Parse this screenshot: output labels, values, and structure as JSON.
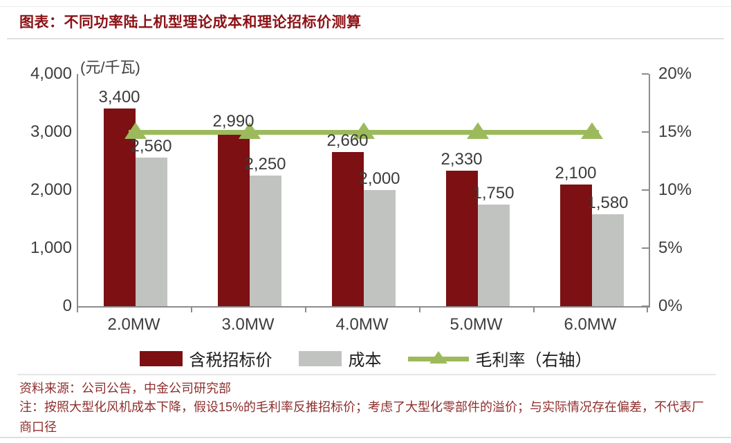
{
  "page": {
    "title": "图表：不同功率陆上机型理论成本和理论招标价测算",
    "source": "资料来源：公司公告，中金公司研究部",
    "note": "注：按照大型化风机成本下降，假设15%的毛利率反推招标价；考虑了大型化零部件的溢价；与实际情况存在偏差，不代表厂商口径"
  },
  "chart_data": {
    "type": "bar",
    "title": "不同功率陆上机型理论成本和理论招标价测算",
    "unit_label": "(元/千瓦)",
    "categories": [
      "2.0MW",
      "3.0MW",
      "4.0MW",
      "5.0MW",
      "6.0MW"
    ],
    "series": [
      {
        "name": "含税招标价",
        "type": "bar",
        "axis": "left",
        "color": "#7d1012",
        "values": [
          3400,
          2990,
          2660,
          2330,
          2100
        ],
        "labels": [
          "3,400",
          "2,990",
          "2,660",
          "2,330",
          "2,100"
        ]
      },
      {
        "name": "成本",
        "type": "bar",
        "axis": "left",
        "color": "#c1c3c1",
        "values": [
          2560,
          2250,
          2000,
          1750,
          1580
        ],
        "labels": [
          "2,560",
          "2,250",
          "2,000",
          "1,750",
          "1,580"
        ]
      },
      {
        "name": "毛利率（右轴）",
        "type": "line",
        "axis": "right",
        "color": "#9cba5c",
        "values": [
          0.15,
          0.15,
          0.15,
          0.15,
          0.15
        ]
      }
    ],
    "left_axis": {
      "min": 0,
      "max": 4000,
      "ticks": [
        {
          "v": 4000,
          "label": "4,000"
        },
        {
          "v": 3000,
          "label": "3,000"
        },
        {
          "v": 2000,
          "label": "2,000"
        },
        {
          "v": 1000,
          "label": "1,000"
        },
        {
          "v": 0,
          "label": "0"
        }
      ]
    },
    "right_axis": {
      "min": 0,
      "max": 0.2,
      "ticks": [
        {
          "v": 0.2,
          "label": "20%"
        },
        {
          "v": 0.15,
          "label": "15%"
        },
        {
          "v": 0.1,
          "label": "10%"
        },
        {
          "v": 0.05,
          "label": "5%"
        },
        {
          "v": 0,
          "label": "0%"
        }
      ]
    },
    "legend_position": "bottom",
    "grid": false,
    "colors": {
      "title": "#8c1115",
      "footer_text": "#8e2e2b",
      "axis": "#8c8c8c"
    }
  }
}
